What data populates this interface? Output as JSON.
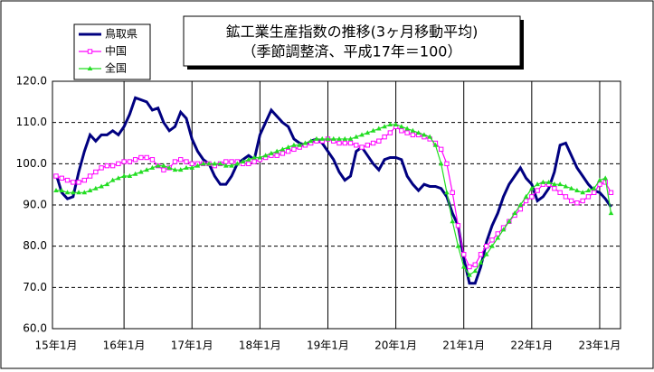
{
  "chart_data": {
    "type": "line",
    "title": "鉱工業生産指数の推移(3ヶ月移動平均)",
    "subtitle": "（季節調整済、平成17年＝100）",
    "categories": [
      "15年1月",
      null,
      null,
      null,
      null,
      null,
      null,
      null,
      null,
      null,
      null,
      null,
      "16年1月",
      null,
      null,
      null,
      null,
      null,
      null,
      null,
      null,
      null,
      null,
      null,
      "17年1月",
      null,
      null,
      null,
      null,
      null,
      null,
      null,
      null,
      null,
      null,
      null,
      "18年1月",
      null,
      null,
      null,
      null,
      null,
      null,
      null,
      null,
      null,
      null,
      null,
      "19年1月",
      null,
      null,
      null,
      null,
      null,
      null,
      null,
      null,
      null,
      null,
      null,
      "20年1月",
      null,
      null,
      null,
      null,
      null,
      null,
      null,
      null,
      null,
      null,
      null,
      "21年1月",
      null,
      null,
      null,
      null,
      null,
      null,
      null,
      null,
      null,
      null,
      null,
      "22年1月",
      null,
      null,
      null,
      null,
      null,
      null,
      null,
      null,
      null,
      null,
      null,
      "23年1月",
      null,
      null
    ],
    "series": [
      {
        "name": "鳥取県",
        "color": "#000080",
        "marker": "none",
        "values": [
          97.5,
          93,
          91.5,
          92,
          98,
          103,
          107,
          105.5,
          107,
          107,
          108,
          107,
          109,
          112,
          116,
          115.5,
          115,
          113,
          113.5,
          110,
          108,
          109,
          112.5,
          111,
          106,
          103,
          101,
          100,
          97,
          95,
          95,
          97,
          100,
          101,
          102,
          101,
          107,
          110,
          113,
          111.5,
          110,
          109,
          106,
          105,
          104.5,
          105.5,
          106,
          105,
          103,
          101,
          98,
          96,
          97,
          103,
          104,
          102,
          100,
          98.5,
          101,
          101.5,
          101.5,
          101,
          97,
          95,
          93.5,
          95,
          94.5,
          94.5,
          94,
          92,
          88,
          85,
          77,
          71,
          71,
          75,
          81,
          85,
          88,
          92,
          95,
          97,
          99,
          96.5,
          95,
          91,
          92,
          94,
          98,
          104.5,
          105,
          102,
          99,
          97,
          95,
          93.5,
          93,
          91.5,
          89.5
        ]
      },
      {
        "name": "中国",
        "color": "#ff00ff",
        "marker": "square",
        "values": [
          97,
          96.5,
          96,
          95.5,
          95.5,
          96,
          97,
          98,
          99,
          99.5,
          99.5,
          100,
          100.5,
          100.5,
          101,
          101.5,
          101.5,
          101,
          99.5,
          98.5,
          99,
          100.5,
          101,
          100.5,
          100,
          100,
          100,
          100,
          99.5,
          100,
          100.5,
          100.5,
          100.5,
          100,
          100,
          100.5,
          101,
          101.5,
          102,
          102,
          102.5,
          103,
          103.5,
          104,
          104.5,
          105,
          105.5,
          105.5,
          106,
          105.5,
          105,
          105,
          105,
          104.5,
          104,
          104.5,
          105,
          105.5,
          106.5,
          107.5,
          109,
          108,
          107.5,
          107,
          107,
          106.5,
          106,
          105,
          103.5,
          100,
          93,
          85,
          78,
          75,
          75.5,
          78,
          80,
          81.5,
          83,
          84.5,
          86,
          87.5,
          89,
          91,
          92,
          93.5,
          95,
          95,
          94,
          93,
          92,
          91,
          90.5,
          91,
          92,
          93,
          95,
          95.5,
          93
        ]
      },
      {
        "name": "全国",
        "color": "#22dd22",
        "marker": "triangle",
        "values": [
          93.5,
          93.5,
          93,
          93,
          93,
          93,
          93.5,
          94,
          94.5,
          95,
          96,
          96.5,
          97,
          97,
          97.5,
          98,
          98.5,
          99,
          99.5,
          99.5,
          99,
          98.5,
          98.5,
          99,
          99,
          99.5,
          100,
          100,
          100,
          100,
          99.5,
          99.5,
          100,
          100.5,
          101,
          101.5,
          101.5,
          102,
          102.5,
          103,
          103.5,
          104,
          104.5,
          104.5,
          105,
          105.5,
          106,
          106,
          106,
          106,
          106,
          106,
          106,
          106.5,
          107,
          107.5,
          108,
          108.5,
          109,
          109.5,
          109.5,
          109,
          108.5,
          108,
          107.5,
          107,
          106.5,
          104.5,
          100,
          93,
          86,
          80,
          75,
          73,
          74,
          76,
          78,
          80,
          82,
          84,
          86,
          88,
          90,
          92,
          94,
          95,
          95.5,
          95.5,
          95,
          95,
          94.5,
          94,
          93.5,
          93,
          93.5,
          94,
          96,
          96.5,
          88
        ]
      }
    ],
    "ylim": [
      60,
      120
    ],
    "yticks": [
      {
        "value": 60,
        "label": "60.0"
      },
      {
        "value": 70,
        "label": "70.0"
      },
      {
        "value": 80,
        "label": "80.0"
      },
      {
        "value": 90,
        "label": "90.0"
      },
      {
        "value": 100,
        "label": "100.0"
      },
      {
        "value": 110,
        "label": "110.0"
      },
      {
        "value": 120,
        "label": "120.0"
      }
    ],
    "grid": true
  }
}
